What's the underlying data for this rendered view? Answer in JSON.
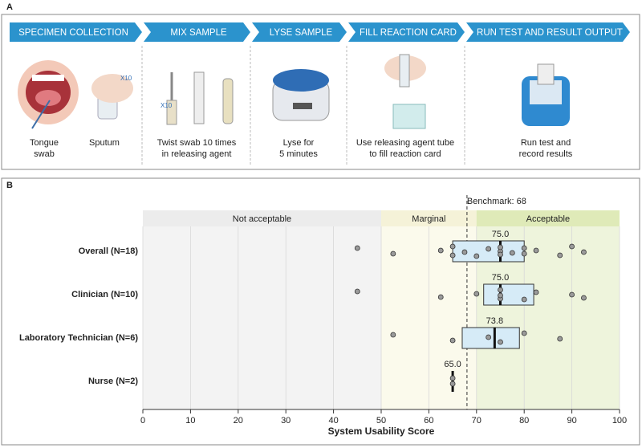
{
  "workflow": {
    "panel_label": "A",
    "steps": [
      {
        "title": "SPECIMEN COLLECTION",
        "captions": [
          [
            "Tongue",
            "swab"
          ],
          [
            "Sputum"
          ]
        ],
        "marks": [
          "X10"
        ]
      },
      {
        "title": "MIX SAMPLE",
        "captions": [
          [
            "Twist swab 10 times",
            "in releasing agent"
          ]
        ],
        "marks": [
          "X10"
        ]
      },
      {
        "title": "LYSE SAMPLE",
        "captions": [
          [
            "Lyse for",
            "5 minutes"
          ]
        ],
        "marks": []
      },
      {
        "title": "FILL REACTION CARD",
        "captions": [
          [
            "Use releasing agent tube",
            "to fill reaction card"
          ]
        ],
        "marks": []
      },
      {
        "title": "RUN TEST  AND RESULT OUTPUT",
        "captions": [
          [
            "Run test and",
            "record results"
          ]
        ],
        "marks": []
      }
    ]
  },
  "chart_data": {
    "type": "box",
    "panel_label": "B",
    "x_label": "System Usability Score",
    "categories": [
      "Overall (N=18)",
      "Clinician (N=10)",
      "Laboratory Technician (N=6)",
      "Nurse (N=2)"
    ],
    "boxes": [
      {
        "q1": 65,
        "median": 75,
        "median_label": "75.0",
        "q3": 80,
        "points": [
          45,
          52.5,
          62.5,
          65,
          65,
          67.5,
          70,
          72.5,
          75,
          75,
          75,
          77.5,
          80,
          80,
          82.5,
          87.5,
          90,
          92.5
        ]
      },
      {
        "q1": 71.5,
        "median": 75,
        "median_label": "75.0",
        "q3": 82,
        "points": [
          45,
          62.5,
          70,
          75,
          75,
          75,
          80,
          82.5,
          90,
          92.5
        ]
      },
      {
        "q1": 67,
        "median": 73.8,
        "median_label": "73.8",
        "q3": 79,
        "points": [
          52.5,
          65,
          72.5,
          75,
          80,
          87.5
        ]
      },
      {
        "q1": 65,
        "median": 65,
        "median_label": "65.0",
        "q3": 65,
        "points": [
          65,
          65
        ]
      }
    ],
    "zones": [
      {
        "label": "Not acceptable",
        "from": 0,
        "to": 50,
        "color": "#f3f3f3",
        "header_color": "#ececec"
      },
      {
        "label": "Marginal",
        "from": 50,
        "to": 70,
        "color": "#fbfaec",
        "header_color": "#f5f2d8"
      },
      {
        "label": "Acceptable",
        "from": 70,
        "to": 100,
        "color": "#eef4dc",
        "header_color": "#dfeab8"
      }
    ],
    "benchmark": {
      "label": "Benchmark: 68",
      "value": 68
    },
    "box_color": "#d6ebf7",
    "point_color": "#9a9a9a",
    "xlim": [
      0,
      100
    ],
    "xticks": [
      0,
      10,
      20,
      30,
      40,
      50,
      60,
      70,
      80,
      90,
      100
    ],
    "grid": true
  }
}
